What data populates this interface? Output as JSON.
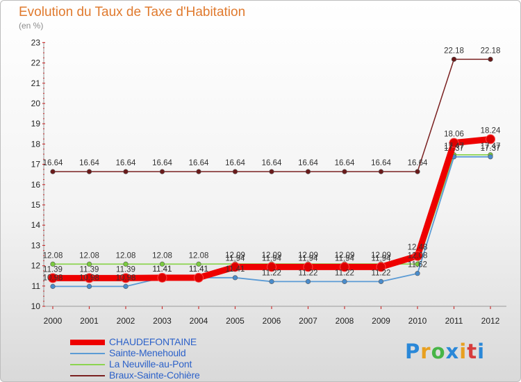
{
  "header": {
    "title": "Evolution du Taux de Taxe d'Habitation",
    "unit": "(en %)"
  },
  "logo": {
    "text": "Proxiti",
    "colors": [
      "#2a88d8",
      "#e8a020",
      "#47b547",
      "#2a88d8",
      "#e8a020",
      "#d63c3c",
      "#2a88d8"
    ]
  },
  "chart_data": {
    "type": "line",
    "title": "Evolution du Taux de Taxe d'Habitation",
    "ylabel": "(en %)",
    "xlabel": "",
    "x": [
      "2000",
      "2001",
      "2002",
      "2003",
      "2004",
      "2005",
      "2006",
      "2007",
      "2008",
      "2009",
      "2010",
      "2011",
      "2012"
    ],
    "ylim": [
      10,
      23
    ],
    "yticks": [
      "10",
      "11",
      "12",
      "13",
      "14",
      "15",
      "16",
      "17",
      "18",
      "19",
      "20",
      "21",
      "22",
      "23"
    ],
    "grid": false,
    "legend_position": "bottom-left",
    "series": [
      {
        "name": "CHAUDEFONTAINE",
        "color": "#ee0000",
        "values": [
          11.39,
          11.39,
          11.39,
          11.41,
          11.41,
          11.94,
          11.94,
          11.94,
          11.94,
          11.94,
          12.48,
          18.06,
          18.24
        ],
        "labels": [
          "11.39",
          "11.39",
          "11.39",
          "11.41",
          "11.41",
          "11.94",
          "11.94",
          "11.94",
          "11.94",
          "11.94",
          "12.48",
          "18.06",
          "18.24"
        ]
      },
      {
        "name": "Sainte-Menehould",
        "color": "#5b9bd5",
        "values": [
          10.98,
          10.98,
          10.98,
          11.41,
          11.41,
          11.41,
          11.22,
          11.22,
          11.22,
          11.22,
          11.62,
          17.37,
          17.37
        ],
        "labels": [
          "10.98",
          "10.98",
          "10.98",
          "11.41",
          "11.41",
          "11.41",
          "11.22",
          "11.22",
          "11.22",
          "11.22",
          "11.62",
          "17.37",
          "17.37"
        ]
      },
      {
        "name": "La Neuville-au-Pont",
        "color": "#8cd450",
        "values": [
          12.08,
          12.08,
          12.08,
          12.08,
          12.08,
          12.09,
          12.09,
          12.09,
          12.09,
          12.09,
          12.08,
          17.47,
          17.47
        ],
        "labels": [
          "12.08",
          "12.08",
          "12.08",
          "12.08",
          "12.08",
          "12.09",
          "12.09",
          "12.09",
          "12.09",
          "12.09",
          "12.08",
          "17.47",
          "17.47"
        ]
      },
      {
        "name": "Braux-Sainte-Cohière",
        "color": "#7a2020",
        "values": [
          16.64,
          16.64,
          16.64,
          16.64,
          16.64,
          16.64,
          16.64,
          16.64,
          16.64,
          16.64,
          16.64,
          22.18,
          22.18
        ],
        "labels": [
          "16.64",
          "16.64",
          "16.64",
          "16.64",
          "16.64",
          "16.64",
          "16.64",
          "16.64",
          "16.64",
          "16.64",
          "16.64",
          "22.18",
          "22.18"
        ]
      }
    ]
  }
}
